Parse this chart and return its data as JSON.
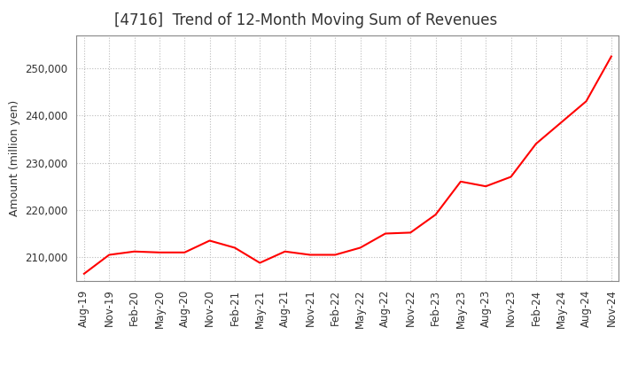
{
  "title": "[4716]  Trend of 12-Month Moving Sum of Revenues",
  "ylabel": "Amount (million yen)",
  "line_color": "#FF0000",
  "background_color": "#FFFFFF",
  "grid_color": "#BBBBBB",
  "ylim": [
    205000,
    257000
  ],
  "yticks": [
    210000,
    220000,
    230000,
    240000,
    250000
  ],
  "x_labels": [
    "Aug-19",
    "Nov-19",
    "Feb-20",
    "May-20",
    "Aug-20",
    "Nov-20",
    "Feb-21",
    "May-21",
    "Aug-21",
    "Nov-21",
    "Feb-22",
    "May-22",
    "Aug-22",
    "Nov-22",
    "Feb-23",
    "May-23",
    "Aug-23",
    "Nov-23",
    "Feb-24",
    "May-24",
    "Aug-24",
    "Nov-24"
  ],
  "y_values": [
    206500,
    210500,
    211200,
    211000,
    211000,
    213500,
    212000,
    208800,
    211200,
    210500,
    210500,
    212000,
    215000,
    215200,
    219000,
    226000,
    225000,
    227000,
    234000,
    238500,
    243000,
    252500
  ],
  "title_fontsize": 12,
  "axis_label_fontsize": 9,
  "tick_fontsize": 8.5
}
